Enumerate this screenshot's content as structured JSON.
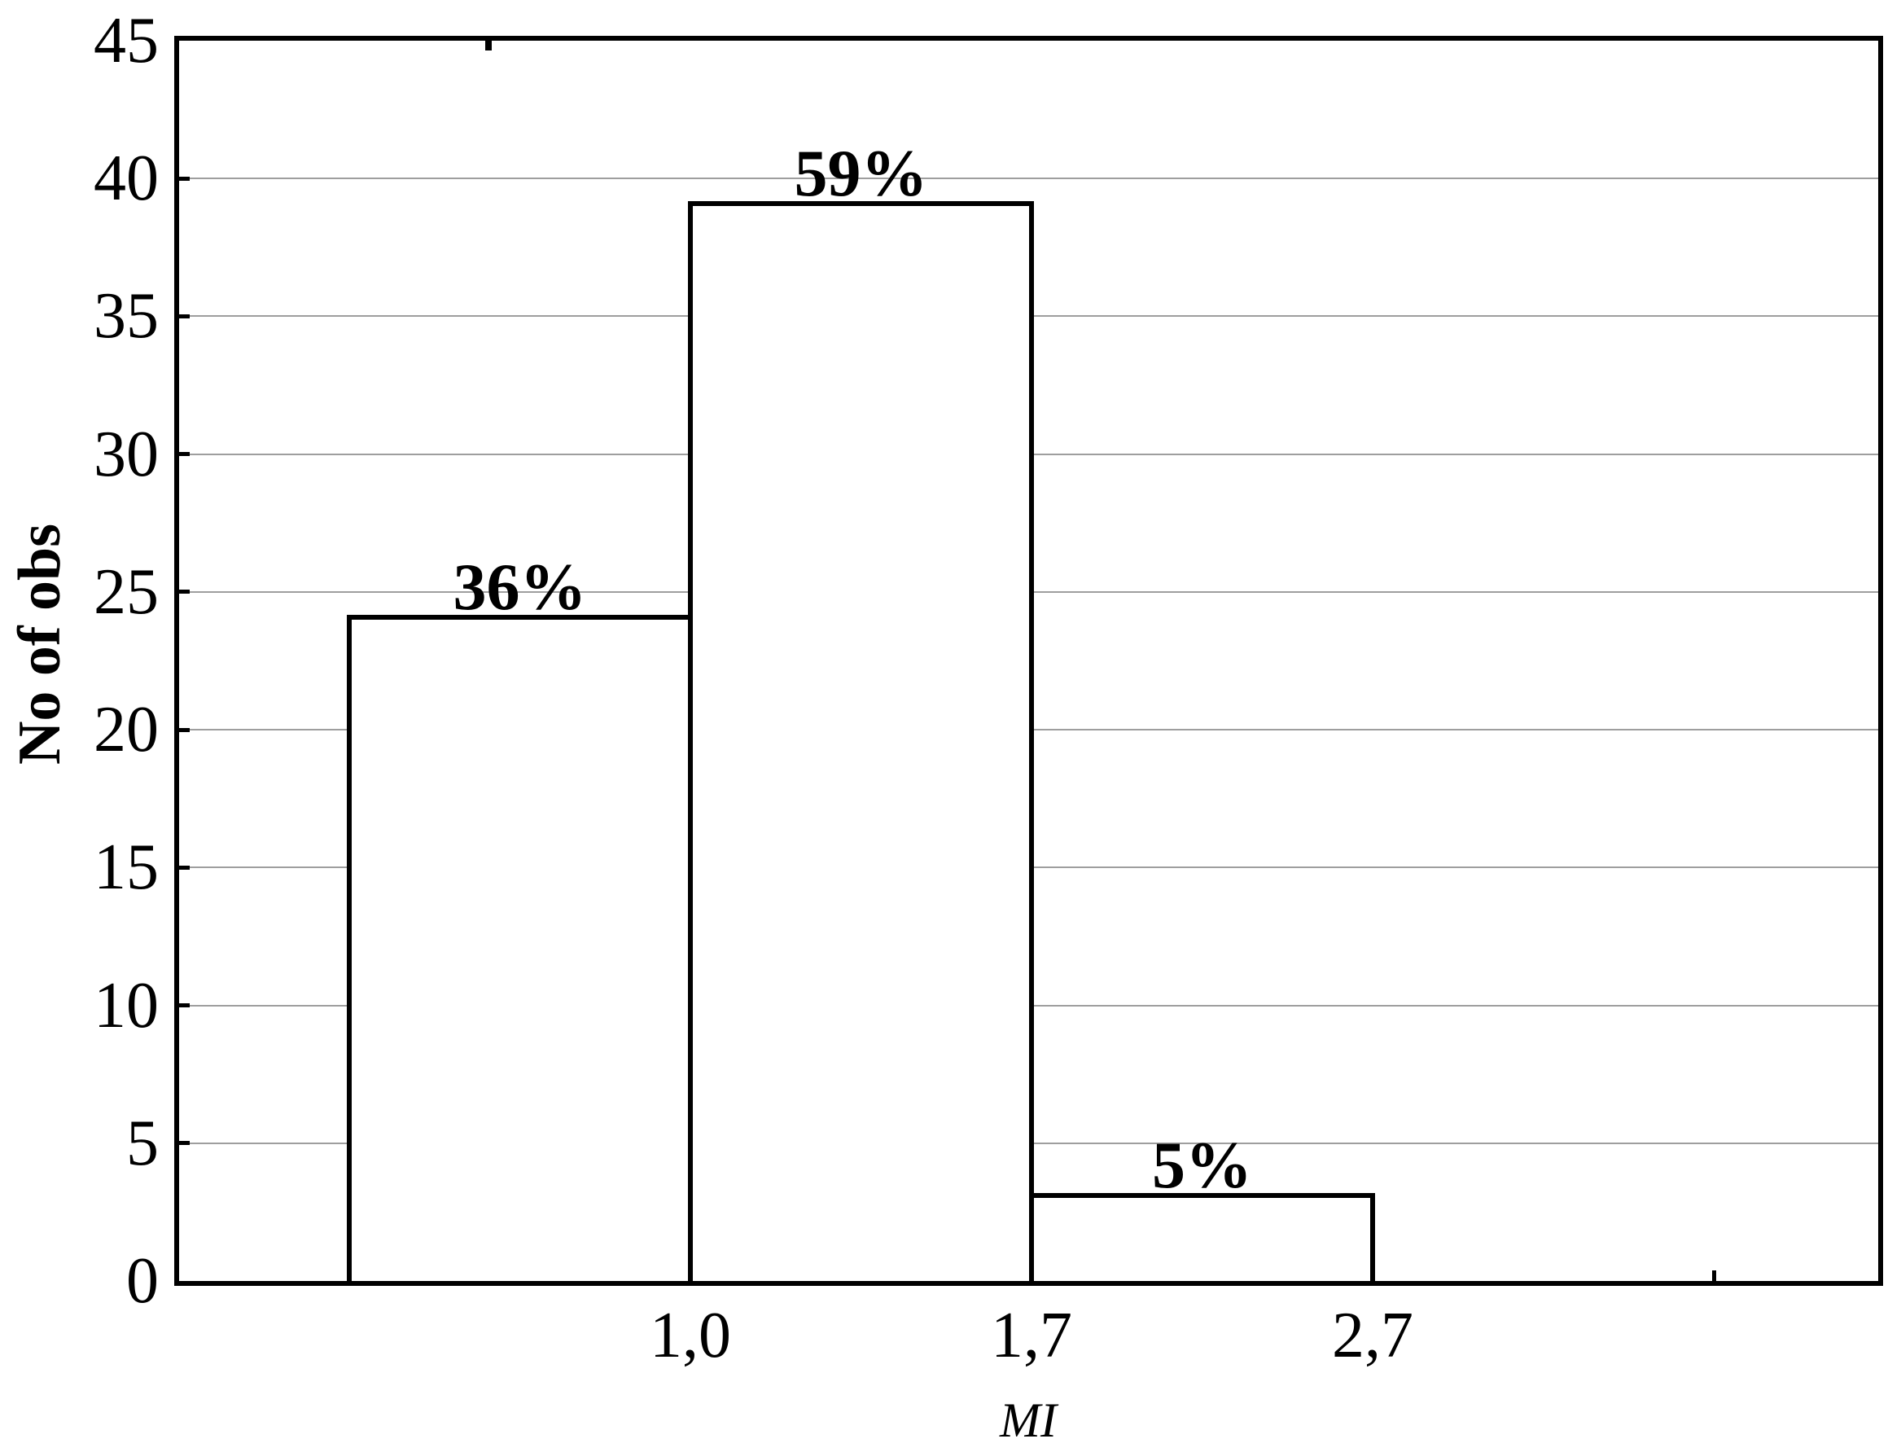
{
  "chart_data": {
    "type": "bar",
    "title": "",
    "ylabel": "No of obs",
    "xlabel": "MI",
    "ylim": [
      0,
      45
    ],
    "y_ticks": [
      0,
      5,
      10,
      15,
      20,
      25,
      30,
      35,
      40,
      45
    ],
    "x_tick_labels": [
      "1,0",
      "1,7",
      "2,7"
    ],
    "has_extra_unlabeled_x_tick": true,
    "grid": "horizontal",
    "legend_position": "none",
    "bars": [
      {
        "value": 24,
        "percent_label": "36%",
        "bin": [
          null,
          "1,0"
        ]
      },
      {
        "value": 39,
        "percent_label": "59%",
        "bin": [
          "1,0",
          "1,7"
        ]
      },
      {
        "value": 3,
        "percent_label": "5%",
        "bin": [
          "1,7",
          "2,7"
        ]
      }
    ],
    "colors": {
      "background": "#ffffff",
      "axis": "#000000",
      "text": "#000000",
      "gridline": "#9e9e9e",
      "bar_fill": "#ffffff",
      "bar_border": "#000000"
    }
  }
}
